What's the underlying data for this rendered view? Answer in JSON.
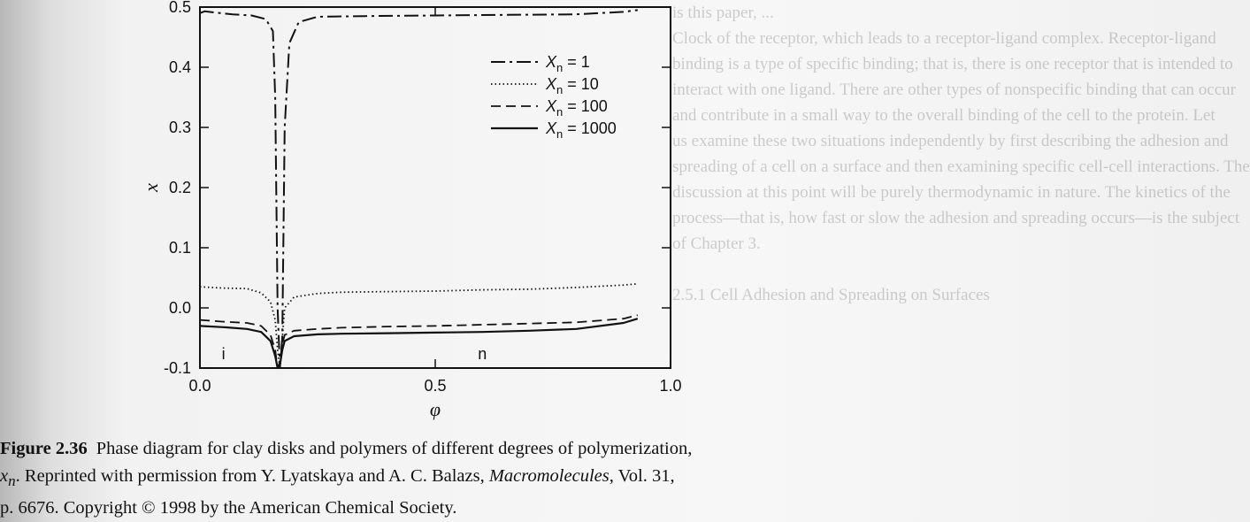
{
  "background_text": [
    "is this paper, ...",
    "Clock of the receptor, which leads to a receptor-ligand complex. Receptor-ligand",
    "binding is a type of specific binding; that is, there is one receptor that is intended to",
    "interact with one ligand. There are other types of nonspecific binding that can occur",
    "and contribute in a small way to the overall binding of the cell to the protein. Let",
    "us examine these two situations independently by first describing the adhesion and",
    "spreading of a cell on a surface and then examining specific cell-cell interactions. The",
    "discussion at this point will be purely thermodynamic in nature. The kinetics of the",
    "process—that is, how fast or slow the adhesion and spreading occurs—is the subject",
    "of Chapter 3."
  ],
  "section_heading": "2.5.1 Cell Adhesion and Spreading on Surfaces",
  "caption": {
    "label": "Figure 2.36",
    "text1": "Phase diagram for clay disks and polymers of different degrees of polymerization,",
    "var": "x",
    "var_sub": "n",
    "text2": ". Reprinted with permission from Y. Lyatskaya and A. C. Balazs,",
    "journal": "Macromolecules",
    "text3": ", Vol. 31,",
    "text4": "p. 6676. Copyright © 1998 by the American Chemical Society."
  },
  "chart_data": {
    "type": "line",
    "xlabel": "φ",
    "ylabel": "x",
    "xlim": [
      0.0,
      1.0
    ],
    "ylim": [
      -0.1,
      0.5
    ],
    "x_ticks": [
      "0.0",
      "0.5",
      "1.0"
    ],
    "y_ticks": [
      "0.5",
      "0.4",
      "0.3",
      "0.2",
      "0.1",
      "0.0",
      "-0.1"
    ],
    "region_labels": [
      {
        "text": "i",
        "x": 0.05,
        "y": -0.085
      },
      {
        "text": "n",
        "x": 0.6,
        "y": -0.085
      }
    ],
    "legend_position": "upper-right",
    "series": [
      {
        "name": "X_n = 1",
        "name_base": "X",
        "name_sub": "n",
        "name_rest": " = 1",
        "style": "dash-dot",
        "x": [
          0.0,
          0.01,
          0.03,
          0.07,
          0.11,
          0.14,
          0.155,
          0.16,
          0.165,
          0.17,
          0.175,
          0.18,
          0.19,
          0.21,
          0.25,
          0.35,
          0.5,
          0.65,
          0.8,
          0.9,
          0.93
        ],
        "y": [
          0.49,
          0.493,
          0.491,
          0.488,
          0.486,
          0.48,
          0.46,
          0.35,
          0.0,
          -0.1,
          -0.05,
          0.3,
          0.44,
          0.475,
          0.484,
          0.485,
          0.486,
          0.487,
          0.488,
          0.492,
          0.495
        ]
      },
      {
        "name": "X_n = 10",
        "name_base": "X",
        "name_sub": "n",
        "name_rest": " = 10",
        "style": "dotted",
        "x": [
          0.0,
          0.05,
          0.1,
          0.13,
          0.15,
          0.16,
          0.165,
          0.17,
          0.175,
          0.18,
          0.2,
          0.25,
          0.3,
          0.4,
          0.5,
          0.6,
          0.7,
          0.8,
          0.9,
          0.93
        ],
        "y": [
          0.035,
          0.033,
          0.032,
          0.025,
          0.01,
          -0.02,
          -0.07,
          -0.1,
          -0.05,
          0.0,
          0.018,
          0.024,
          0.026,
          0.027,
          0.028,
          0.03,
          0.031,
          0.034,
          0.038,
          0.04
        ]
      },
      {
        "name": "X_n = 100",
        "name_base": "X",
        "name_sub": "n",
        "name_rest": " = 100",
        "style": "dashed",
        "x": [
          0.0,
          0.05,
          0.1,
          0.13,
          0.15,
          0.16,
          0.165,
          0.17,
          0.175,
          0.18,
          0.2,
          0.25,
          0.3,
          0.4,
          0.5,
          0.6,
          0.7,
          0.8,
          0.9,
          0.93
        ],
        "y": [
          -0.02,
          -0.023,
          -0.025,
          -0.03,
          -0.045,
          -0.07,
          -0.1,
          -0.09,
          -0.06,
          -0.045,
          -0.038,
          -0.035,
          -0.033,
          -0.031,
          -0.03,
          -0.028,
          -0.026,
          -0.024,
          -0.018,
          -0.012
        ]
      },
      {
        "name": "X_n = 1000",
        "name_base": "X",
        "name_sub": "n",
        "name_rest": " = 1000",
        "style": "solid",
        "x": [
          0.0,
          0.05,
          0.1,
          0.13,
          0.15,
          0.16,
          0.165,
          0.17,
          0.175,
          0.18,
          0.2,
          0.25,
          0.3,
          0.4,
          0.5,
          0.6,
          0.7,
          0.8,
          0.9,
          0.93
        ],
        "y": [
          -0.03,
          -0.032,
          -0.035,
          -0.04,
          -0.055,
          -0.08,
          -0.1,
          -0.095,
          -0.07,
          -0.055,
          -0.047,
          -0.044,
          -0.043,
          -0.042,
          -0.041,
          -0.04,
          -0.038,
          -0.035,
          -0.025,
          -0.018
        ]
      }
    ]
  }
}
